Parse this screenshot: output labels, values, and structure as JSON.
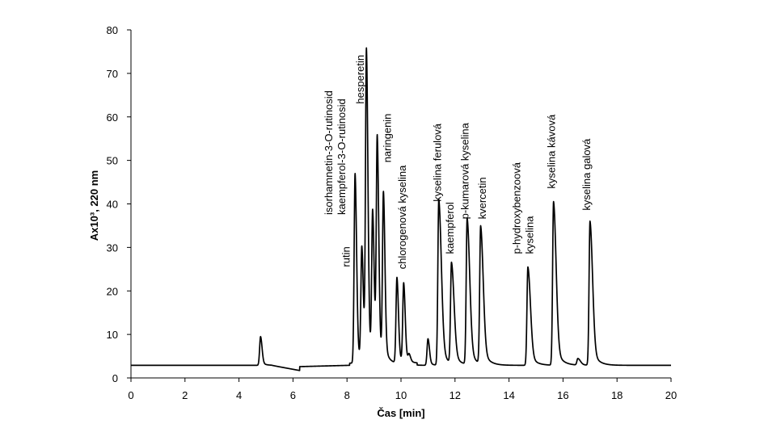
{
  "chart_data": {
    "type": "line",
    "title": "",
    "xlabel": "Čas [min]",
    "ylabel": "Ax10³, 220 nm",
    "xlim": [
      0,
      20
    ],
    "ylim": [
      0,
      80
    ],
    "xticks": [
      0,
      2,
      4,
      6,
      8,
      10,
      12,
      14,
      16,
      18,
      20
    ],
    "yticks": [
      0,
      10,
      20,
      30,
      40,
      50,
      60,
      70,
      80
    ],
    "grid": false,
    "baseline": 2.9,
    "peaks": [
      {
        "x": 4.8,
        "y": 9.5
      },
      {
        "x": 8.3,
        "y": 46.5
      },
      {
        "x": 8.55,
        "y": 29.0
      },
      {
        "x": 8.72,
        "y": 74.0
      },
      {
        "x": 8.95,
        "y": 36.5
      },
      {
        "x": 9.12,
        "y": 53.5
      },
      {
        "x": 9.35,
        "y": 41.0
      },
      {
        "x": 9.85,
        "y": 22.5
      },
      {
        "x": 10.1,
        "y": 21.0
      },
      {
        "x": 10.3,
        "y": 4.5
      },
      {
        "x": 11.0,
        "y": 9.0
      },
      {
        "x": 11.4,
        "y": 41.0
      },
      {
        "x": 11.87,
        "y": 26.0
      },
      {
        "x": 12.45,
        "y": 36.5
      },
      {
        "x": 12.95,
        "y": 34.5
      },
      {
        "x": 14.7,
        "y": 25.5
      },
      {
        "x": 15.65,
        "y": 40.5
      },
      {
        "x": 16.55,
        "y": 4.4
      },
      {
        "x": 17.0,
        "y": 36.0
      }
    ],
    "annotations": [
      {
        "lines": [
          "rutin"
        ]
      },
      {
        "lines": [
          "isorhamnetin-3-O-rutinosid",
          "kaempferol-3-O-rutinosid"
        ]
      },
      {
        "lines": [
          "hesperetin"
        ]
      },
      {
        "lines": [
          "naringenin"
        ]
      },
      {
        "lines": [
          "chlorogenová kyselina"
        ]
      },
      {
        "lines": [
          "kyselina ferulová"
        ]
      },
      {
        "lines": [
          "kaempferol"
        ]
      },
      {
        "lines": [
          "p-kumarová kyselina"
        ]
      },
      {
        "lines": [
          "kvercetin"
        ]
      },
      {
        "lines": [
          "p-hydroxybenzoová",
          "kyselina"
        ]
      },
      {
        "lines": [
          "kyselina kávová"
        ]
      },
      {
        "lines": [
          "kyselina galová"
        ]
      }
    ]
  }
}
